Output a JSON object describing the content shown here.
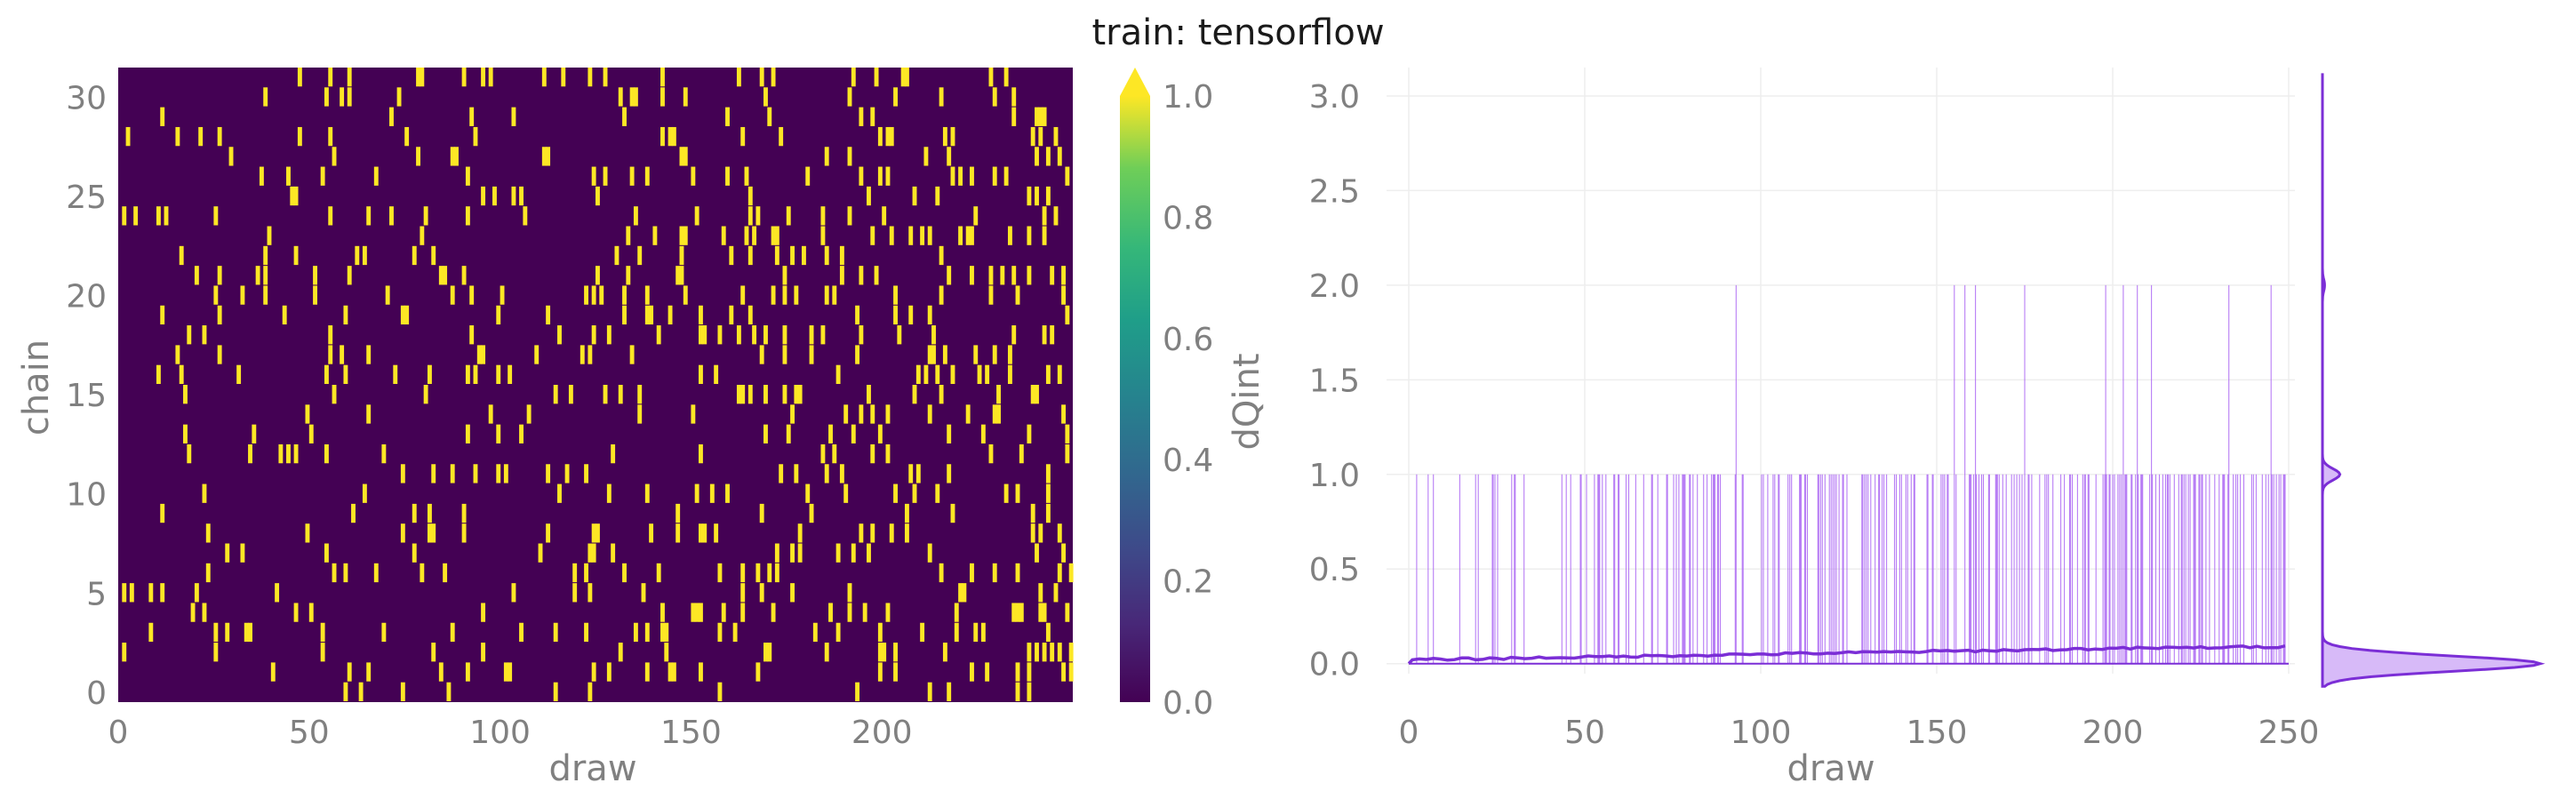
{
  "title": "train: tensorflow",
  "colors": {
    "viridis_low": "#440154",
    "viridis_high": "#fde725",
    "trace_line": "#a65ef2",
    "mean_line": "#7b2ed6",
    "axis_text": "#808080"
  },
  "chart_data": [
    {
      "type": "heatmap",
      "xlabel": "draw",
      "ylabel": "chain",
      "xlim": [
        0,
        250
      ],
      "ylim": [
        0,
        32
      ],
      "x_ticks": [
        0,
        50,
        100,
        150,
        200
      ],
      "y_ticks": [
        0,
        5,
        10,
        15,
        20,
        25,
        30
      ],
      "n_draws": 250,
      "n_chains": 32,
      "value_description": "binary dQint values (0 or 1) per chain/draw",
      "colorbar": {
        "label": "dQint",
        "colormap": "viridis",
        "range": [
          0,
          1
        ],
        "ticks": [
          "0.0",
          "0.2",
          "0.4",
          "0.6",
          "0.8",
          "1.0"
        ],
        "extend": "max"
      }
    },
    {
      "type": "line",
      "xlabel": "draw",
      "ylabel": "",
      "xlim": [
        0,
        250
      ],
      "ylim": [
        0,
        3
      ],
      "x_ticks": [
        0,
        50,
        100,
        150,
        200,
        250
      ],
      "y_ticks": [
        "0.0",
        "0.5",
        "1.0",
        "1.5",
        "2.0",
        "2.5",
        "3.0"
      ],
      "grid": true,
      "spikes_to_2": [
        93,
        155,
        158,
        161,
        175,
        198,
        203,
        207,
        211,
        233,
        245
      ],
      "gap_without_spikes": [
        36,
        41
      ],
      "mean_line": {
        "x": [
          0,
          50,
          100,
          150,
          200,
          250
        ],
        "y": [
          0.02,
          0.035,
          0.05,
          0.065,
          0.08,
          0.09
        ]
      },
      "marginal_density": {
        "peaks": [
          0,
          1,
          2
        ],
        "peak_heights": [
          1.0,
          0.08,
          0.01
        ]
      }
    }
  ]
}
